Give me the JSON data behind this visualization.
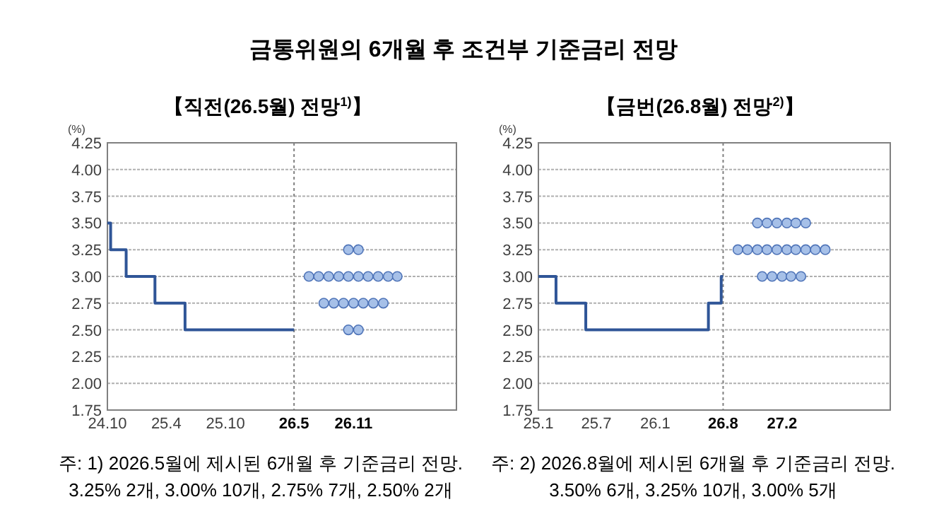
{
  "chart_data": [
    {
      "type": "step",
      "title": "금통위원의 6개월 후 조건부 기준금리 전망",
      "subtitle": "【직전(26.5월) 전망$^{1)}$】",
      "ylabel": "(%)",
      "xlim": [
        "2024-10-01",
        "2027-09-15"
      ],
      "xticks": [
        {
          "value": "2024-10",
          "label": "24.10"
        },
        {
          "value": "2025-04",
          "label": "25.4"
        },
        {
          "value": "2025-10",
          "label": "25.10"
        },
        {
          "value": "2026-05",
          "label": "26.5"
        },
        {
          "value": "2026-11",
          "label": "26.11"
        }
      ],
      "ylim": [
        1.75,
        4.25
      ],
      "yticks": [
        {
          "value": 1.75,
          "label": "1.75"
        },
        {
          "value": 2,
          "label": "2.00"
        },
        {
          "value": 2.25,
          "label": "2.25"
        },
        {
          "value": 2.5,
          "label": "2.50"
        },
        {
          "value": 2.75,
          "label": "2.75"
        },
        {
          "value": 3,
          "label": "3.00"
        },
        {
          "value": 3.25,
          "label": "3.25"
        },
        {
          "value": 3.5,
          "label": "3.50"
        },
        {
          "value": 3.75,
          "label": "3.75"
        },
        {
          "value": 4,
          "label": "4.00"
        },
        {
          "value": 4.25,
          "label": "4.25"
        }
      ],
      "grid": "y",
      "ref_lines": [
        {
          "axis": "x",
          "value": "2026-05",
          "color": "#808080",
          "line_style": "dotted"
        }
      ],
      "series": [
        {
          "type": "step",
          "color": "#2f5597",
          "x": [
            "2024-10-01",
            "2024-10-11",
            "2024-11-28",
            "2025-02-25",
            "2025-05-29",
            "2026-05-01"
          ],
          "values": [
            3.5,
            3.25,
            3.0,
            2.75,
            2.5,
            2.5
          ]
        },
        {
          "type": "scatter",
          "color": "#a6c0e8",
          "x": [
            "2026-10-16",
            "2026-11-16",
            "2026-06-16",
            "2026-07-16",
            "2026-08-16",
            "2026-09-16",
            "2026-10-16",
            "2026-11-16",
            "2026-12-16",
            "2027-01-16",
            "2027-02-16",
            "2027-03-16",
            "2026-08-01",
            "2026-09-01",
            "2026-10-01",
            "2026-11-01",
            "2026-12-01",
            "2027-01-01",
            "2027-02-01",
            "2026-10-16",
            "2026-11-16"
          ],
          "values": [
            3.25,
            3.25,
            3.0,
            3.0,
            3.0,
            3.0,
            3.0,
            3.0,
            3.0,
            3.0,
            3.0,
            3.0,
            2.75,
            2.75,
            2.75,
            2.75,
            2.75,
            2.75,
            2.75,
            2.5,
            2.5
          ]
        }
      ],
      "annotations": [
        "주: 1) 2026.5월에 제시된 6개월 후 기준금리 전망.\n3.25% 2개,  3.00% 10개,  2.75% 7개,  2.50% 2개"
      ]
    },
    {
      "type": "step",
      "subtitle": "【금번(26.8월) 전망$^{2)}$】",
      "ylabel": "(%)",
      "xlim": [
        "2025-01-01",
        "2028-01-05"
      ],
      "xticks": [
        {
          "value": "2025-01",
          "label": "25.1"
        },
        {
          "value": "2025-07",
          "label": "25.7"
        },
        {
          "value": "2026-01",
          "label": "26.1"
        },
        {
          "value": "2026-08",
          "label": "26.8"
        },
        {
          "value": "2027-02",
          "label": "27.2"
        }
      ],
      "ylim": [
        1.75,
        4.25
      ],
      "yticks": [
        {
          "value": 1.75,
          "label": "1.75"
        },
        {
          "value": 2,
          "label": "2.00"
        },
        {
          "value": 2.25,
          "label": "2.25"
        },
        {
          "value": 2.5,
          "label": "2.50"
        },
        {
          "value": 2.75,
          "label": "2.75"
        },
        {
          "value": 3,
          "label": "3.00"
        },
        {
          "value": 3.25,
          "label": "3.25"
        },
        {
          "value": 3.5,
          "label": "3.50"
        },
        {
          "value": 3.75,
          "label": "3.75"
        },
        {
          "value": 4,
          "label": "4.00"
        },
        {
          "value": 4.25,
          "label": "4.25"
        }
      ],
      "grid": "y",
      "ref_lines": [
        {
          "axis": "x",
          "value": "2026-08",
          "color": "#808080",
          "line_style": "dotted"
        }
      ],
      "series": [
        {
          "type": "step",
          "color": "#2f5597",
          "x": [
            "2025-01-01",
            "2025-02-25",
            "2025-05-29",
            "2026-06-16",
            "2026-07-26",
            "2026-08-01"
          ],
          "values": [
            3.0,
            2.75,
            2.5,
            2.75,
            3.0,
            3.0
          ]
        },
        {
          "type": "scatter",
          "color": "#a6c0e8",
          "x": [
            "2026-11-16",
            "2026-12-16",
            "2027-01-16",
            "2027-02-16",
            "2027-03-16",
            "2027-04-16",
            "2026-09-16",
            "2026-10-16",
            "2026-11-16",
            "2026-12-16",
            "2027-01-16",
            "2027-02-16",
            "2027-03-16",
            "2027-04-16",
            "2027-05-16",
            "2027-06-16",
            "2026-12-01",
            "2027-01-01",
            "2027-02-01",
            "2027-03-01",
            "2027-04-01"
          ],
          "values": [
            3.5,
            3.5,
            3.5,
            3.5,
            3.5,
            3.5,
            3.25,
            3.25,
            3.25,
            3.25,
            3.25,
            3.25,
            3.25,
            3.25,
            3.25,
            3.25,
            3.0,
            3.0,
            3.0,
            3.0,
            3.0
          ]
        }
      ],
      "annotations": [
        "주: 2) 2026.8월에 제시된 6개월 후 기준금리 전망.\n3.50%  6개,   3.25% 10개,  3.00% 5개"
      ]
    }
  ]
}
